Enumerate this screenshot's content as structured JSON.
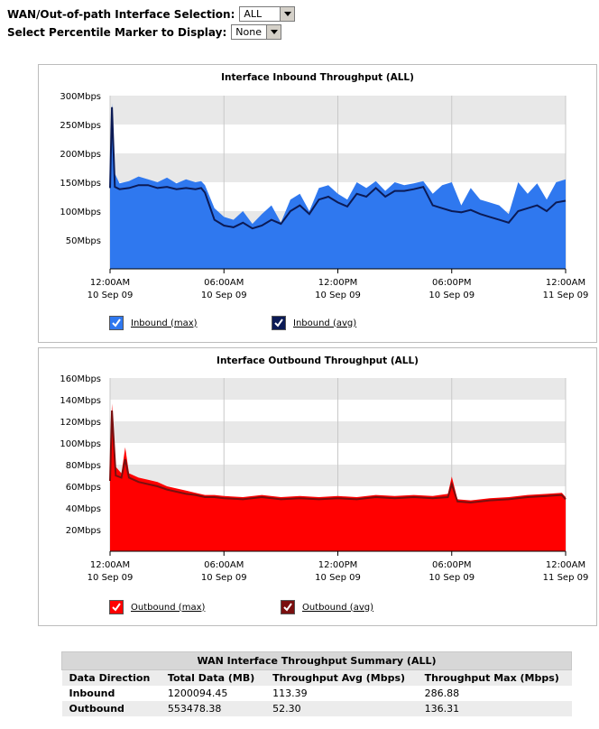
{
  "controls": {
    "interface_label": "WAN/Out-of-path Interface Selection:",
    "interface_value": "ALL",
    "percentile_label": "Select Percentile Marker to Display:",
    "percentile_value": "None"
  },
  "chart_data": [
    {
      "type": "area",
      "title": "Interface Inbound Throughput (ALL)",
      "xlabel": "",
      "ylabel": "",
      "ylim": [
        0,
        300
      ],
      "y_ticks": [
        "300Mbps",
        "250Mbps",
        "200Mbps",
        "150Mbps",
        "100Mbps",
        "50Mbps"
      ],
      "y_tick_values": [
        300,
        250,
        200,
        150,
        100,
        50
      ],
      "x_range_hours": [
        0,
        24
      ],
      "x_ticks": [
        {
          "hour": 0,
          "time": "12:00AM",
          "date": "10 Sep 09"
        },
        {
          "hour": 6,
          "time": "06:00AM",
          "date": "10 Sep 09"
        },
        {
          "hour": 12,
          "time": "12:00PM",
          "date": "10 Sep 09"
        },
        {
          "hour": 18,
          "time": "06:00PM",
          "date": "10 Sep 09"
        },
        {
          "hour": 24,
          "time": "12:00AM",
          "date": "11 Sep 09"
        }
      ],
      "grid": "alternating horizontal bands, vertical lines",
      "legend_position": "bottom",
      "series": [
        {
          "name": "Inbound (max)",
          "style": "area",
          "color": "#2f78ef",
          "x": [
            0,
            0.1,
            0.25,
            0.5,
            1,
            1.5,
            2,
            2.5,
            3,
            3.5,
            4,
            4.5,
            4.8,
            5,
            5.5,
            6,
            6.5,
            7,
            7.5,
            8,
            8.5,
            9,
            9.5,
            10,
            10.5,
            11,
            11.5,
            12,
            12.5,
            13,
            13.5,
            14,
            14.5,
            15,
            15.5,
            16,
            16.5,
            17,
            17.5,
            18,
            18.5,
            19,
            19.5,
            20,
            20.5,
            21,
            21.5,
            22,
            22.5,
            23,
            23.5,
            24
          ],
          "values": [
            150,
            286.9,
            165,
            148,
            152,
            160,
            155,
            150,
            158,
            148,
            155,
            150,
            152,
            145,
            105,
            90,
            85,
            100,
            78,
            95,
            110,
            80,
            120,
            130,
            100,
            140,
            145,
            130,
            120,
            150,
            140,
            152,
            135,
            150,
            145,
            148,
            152,
            130,
            145,
            150,
            110,
            140,
            120,
            115,
            110,
            95,
            150,
            130,
            148,
            120,
            150,
            155
          ]
        },
        {
          "name": "Inbound (avg)",
          "style": "line",
          "color": "#0b1a55",
          "x": [
            0,
            0.1,
            0.25,
            0.5,
            1,
            1.5,
            2,
            2.5,
            3,
            3.5,
            4,
            4.5,
            4.8,
            5,
            5.5,
            6,
            6.5,
            7,
            7.5,
            8,
            8.5,
            9,
            9.5,
            10,
            10.5,
            11,
            11.5,
            12,
            12.5,
            13,
            13.5,
            14,
            14.5,
            15,
            15.5,
            16,
            16.5,
            17,
            17.5,
            18,
            18.5,
            19,
            19.5,
            20,
            20.5,
            21,
            21.5,
            22,
            22.5,
            23,
            23.5,
            24
          ],
          "values": [
            140,
            280,
            142,
            138,
            140,
            145,
            145,
            140,
            142,
            138,
            140,
            138,
            140,
            132,
            85,
            75,
            72,
            80,
            70,
            75,
            85,
            78,
            100,
            110,
            95,
            120,
            125,
            115,
            108,
            130,
            125,
            140,
            125,
            135,
            135,
            138,
            142,
            110,
            105,
            100,
            98,
            102,
            95,
            90,
            85,
            80,
            100,
            105,
            110,
            100,
            115,
            118
          ]
        }
      ]
    },
    {
      "type": "area",
      "title": "Interface Outbound Throughput (ALL)",
      "xlabel": "",
      "ylabel": "",
      "ylim": [
        0,
        160
      ],
      "y_ticks": [
        "160Mbps",
        "140Mbps",
        "120Mbps",
        "100Mbps",
        "80Mbps",
        "60Mbps",
        "40Mbps",
        "20Mbps"
      ],
      "y_tick_values": [
        160,
        140,
        120,
        100,
        80,
        60,
        40,
        20
      ],
      "x_range_hours": [
        0,
        24
      ],
      "x_ticks": [
        {
          "hour": 0,
          "time": "12:00AM",
          "date": "10 Sep 09"
        },
        {
          "hour": 6,
          "time": "06:00AM",
          "date": "10 Sep 09"
        },
        {
          "hour": 12,
          "time": "12:00PM",
          "date": "10 Sep 09"
        },
        {
          "hour": 18,
          "time": "06:00PM",
          "date": "10 Sep 09"
        },
        {
          "hour": 24,
          "time": "12:00AM",
          "date": "11 Sep 09"
        }
      ],
      "grid": "alternating horizontal bands, vertical lines",
      "legend_position": "bottom",
      "series": [
        {
          "name": "Outbound (max)",
          "style": "area",
          "color": "#ff0000",
          "x": [
            0,
            0.1,
            0.3,
            0.6,
            0.8,
            1,
            1.5,
            2,
            2.5,
            3,
            3.5,
            4,
            4.5,
            5,
            5.5,
            6,
            7,
            8,
            9,
            10,
            11,
            12,
            13,
            14,
            15,
            16,
            17,
            17.8,
            18,
            18.3,
            19,
            20,
            21,
            22,
            23,
            23.8,
            24
          ],
          "values": [
            70,
            136.3,
            78,
            72,
            96,
            72,
            68,
            66,
            64,
            60,
            58,
            56,
            54,
            52,
            52,
            51,
            50,
            52,
            50,
            51,
            50,
            51,
            50,
            52,
            51,
            52,
            51,
            53,
            69,
            48,
            47,
            49,
            50,
            52,
            53,
            54,
            50
          ]
        },
        {
          "name": "Outbound (avg)",
          "style": "line",
          "color": "#7a0f0f",
          "x": [
            0,
            0.1,
            0.3,
            0.6,
            0.8,
            1,
            1.5,
            2,
            2.5,
            3,
            3.5,
            4,
            4.5,
            5,
            5.5,
            6,
            7,
            8,
            9,
            10,
            11,
            12,
            13,
            14,
            15,
            16,
            17,
            17.8,
            18,
            18.3,
            19,
            20,
            21,
            22,
            23,
            23.8,
            24
          ],
          "values": [
            65,
            130,
            70,
            68,
            85,
            68,
            64,
            62,
            60,
            57,
            55,
            53,
            52,
            50,
            50,
            49,
            48,
            50,
            48,
            49,
            48,
            49,
            48,
            50,
            49,
            50,
            49,
            50,
            62,
            46,
            45,
            47,
            48,
            50,
            51,
            52,
            48
          ]
        }
      ]
    }
  ],
  "legends": [
    {
      "label": "Inbound (max)",
      "color": "#2f78ef"
    },
    {
      "label": "Inbound (avg)",
      "color": "#0b1a55"
    },
    {
      "label": "Outbound (max)",
      "color": "#ff0000"
    },
    {
      "label": "Outbound (avg)",
      "color": "#7a0f0f"
    }
  ],
  "summary": {
    "caption": "WAN Interface Throughput Summary (ALL)",
    "headers": [
      "Data Direction",
      "Total Data (MB)",
      "Throughput Avg (Mbps)",
      "Throughput Max (Mbps)"
    ],
    "rows": [
      [
        "Inbound",
        "1200094.45",
        "113.39",
        "286.88"
      ],
      [
        "Outbound",
        "553478.38",
        "52.30",
        "136.31"
      ]
    ]
  }
}
